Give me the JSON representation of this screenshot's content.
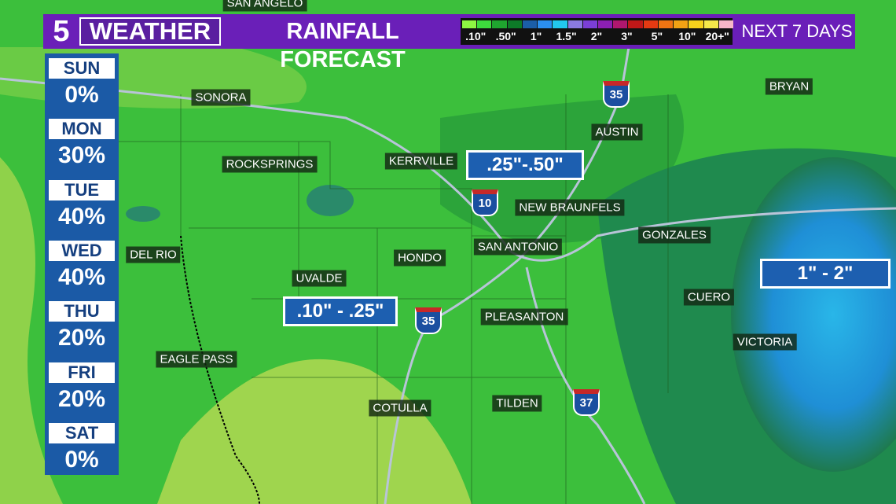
{
  "header": {
    "logo": "5",
    "brand": "WEATHER",
    "title": "RAINFALL FORECAST",
    "period": "NEXT 7 DAYS",
    "legend": [
      {
        "label": ".10\"",
        "colors": [
          "#8ef542",
          "#3ddc3d"
        ]
      },
      {
        "label": ".50\"",
        "colors": [
          "#1fa52f",
          "#0d7a28"
        ]
      },
      {
        "label": "1\"",
        "colors": [
          "#1b5ea8",
          "#2b8ff0"
        ]
      },
      {
        "label": "1.5\"",
        "colors": [
          "#22c8ee",
          "#8a7ae0"
        ]
      },
      {
        "label": "2\"",
        "colors": [
          "#7b3fd6",
          "#8c1fb3"
        ]
      },
      {
        "label": "3\"",
        "colors": [
          "#b0176f",
          "#c01818"
        ]
      },
      {
        "label": "5\"",
        "colors": [
          "#e53a12",
          "#f07412"
        ]
      },
      {
        "label": "10\"",
        "colors": [
          "#f2a214",
          "#f6d21c"
        ]
      },
      {
        "label": "20+\"",
        "colors": [
          "#f6e94a",
          "#f6b6c8"
        ]
      }
    ]
  },
  "days": [
    {
      "day": "SUN",
      "chance": "0%"
    },
    {
      "day": "MON",
      "chance": "30%"
    },
    {
      "day": "TUE",
      "chance": "40%"
    },
    {
      "day": "WED",
      "chance": "40%"
    },
    {
      "day": "THU",
      "chance": "20%"
    },
    {
      "day": "FRI",
      "chance": "20%"
    },
    {
      "day": "SAT",
      "chance": "0%"
    }
  ],
  "cities": [
    "SAN ANGELO",
    "SONORA",
    "BRYAN",
    "AUSTIN",
    "ROCKSPRINGS",
    "KERRVILLE",
    "NEW BRAUNFELS",
    "DEL RIO",
    "GONZALES",
    "SAN ANTONIO",
    "HONDO",
    "UVALDE",
    "CUERO",
    "PLEASANTON",
    "VICTORIA",
    "EAGLE PASS",
    "COTULLA",
    "TILDEN"
  ],
  "highways": [
    "35",
    "10",
    "35",
    "37"
  ],
  "rain_totals": [
    ".25\"-.50\"",
    ".10\" - .25\"",
    "1\" - 2\""
  ]
}
